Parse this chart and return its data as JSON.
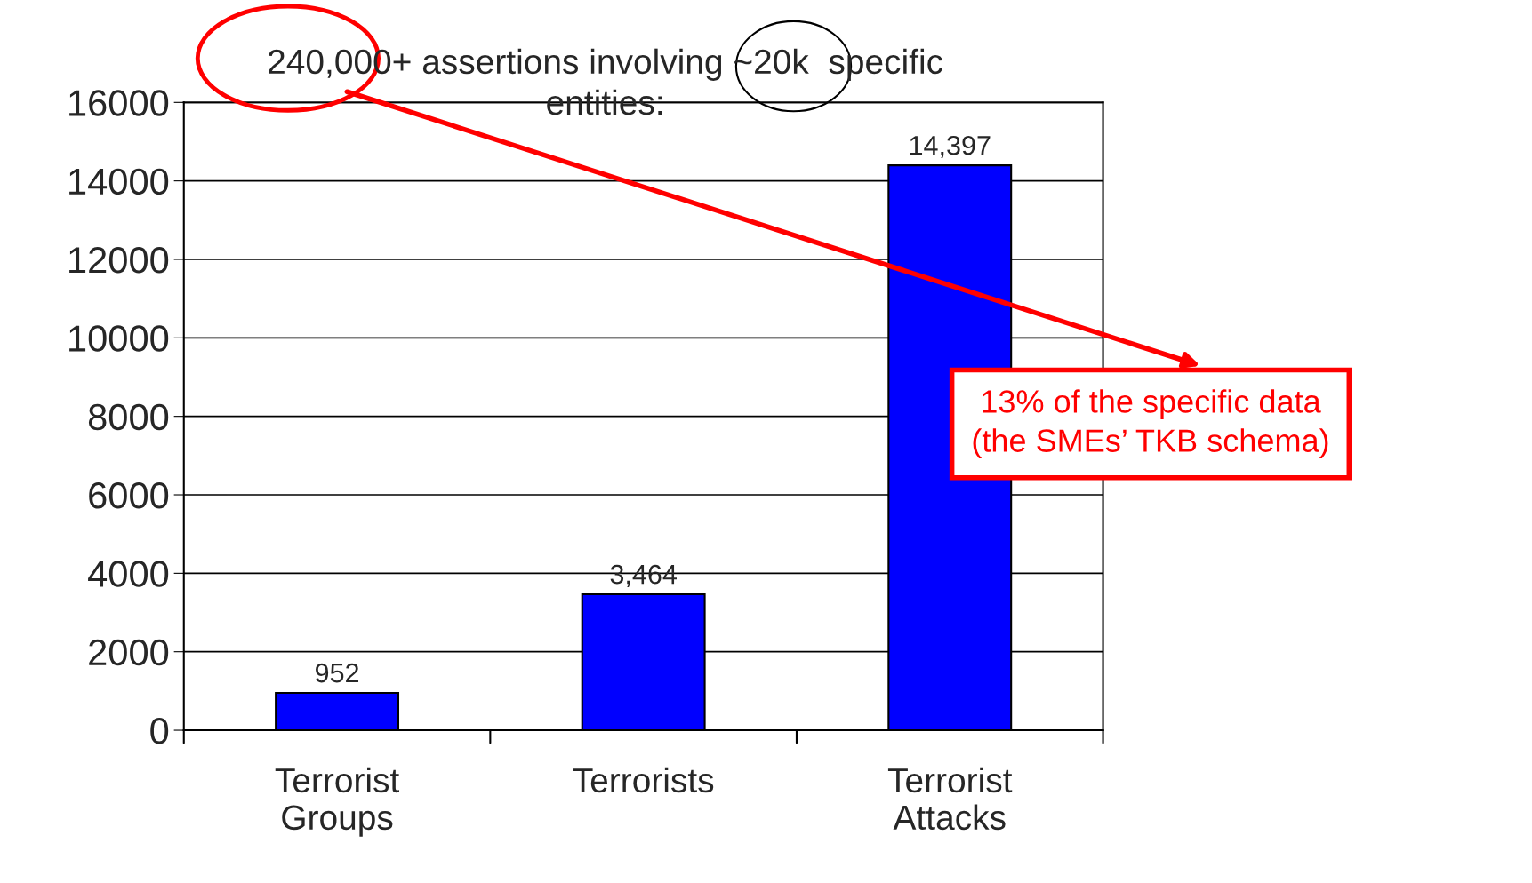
{
  "chart_data": {
    "type": "bar",
    "title": "240,000+ assertions involving ~20k  specific\nentities:",
    "categories": [
      "Terrorist\nGroups",
      "Terrorists",
      "Terrorist\nAttacks"
    ],
    "values": [
      952,
      3464,
      14397
    ],
    "value_labels": [
      "952",
      "3,464",
      "14,397"
    ],
    "color": "#0000ff",
    "ylim": [
      0,
      16000
    ],
    "yticks": [
      0,
      2000,
      4000,
      6000,
      8000,
      10000,
      12000,
      14000,
      16000
    ],
    "grid": "y",
    "annotations": [
      "13% of the specific data\n(the SMEs’ TKB schema)"
    ]
  }
}
